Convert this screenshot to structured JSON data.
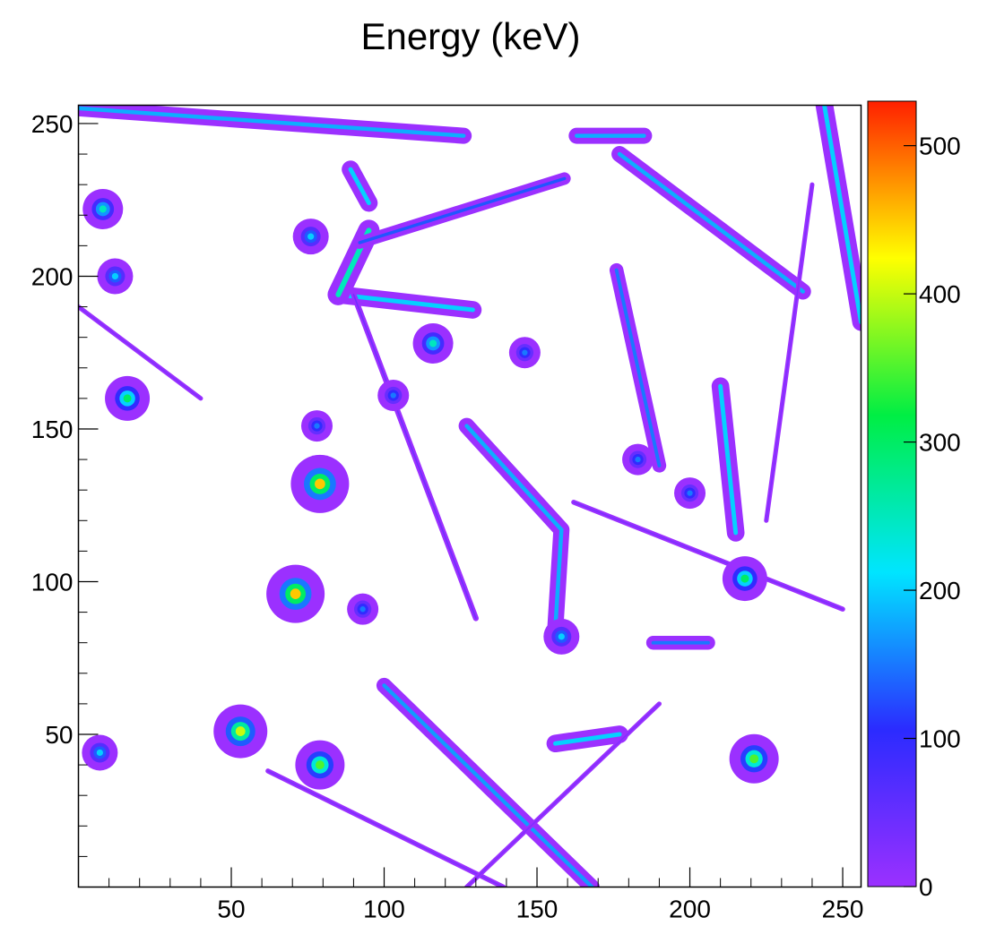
{
  "chart_data": {
    "type": "heatmap",
    "title": "Energy (keV)",
    "xlim": [
      0,
      256
    ],
    "ylim": [
      0,
      256
    ],
    "xticks": [
      50,
      100,
      150,
      200,
      250
    ],
    "yticks": [
      50,
      100,
      150,
      200,
      250
    ],
    "zlim": [
      0,
      530
    ],
    "zticks": [
      0,
      100,
      200,
      300,
      400,
      500
    ],
    "colormap": [
      "#9b30ff",
      "#2b2bff",
      "#00e5ff",
      "#00ee44",
      "#ffff00",
      "#ff2000"
    ],
    "x": [
      8,
      12,
      16,
      78,
      79,
      71,
      93,
      218,
      221,
      53,
      79,
      7,
      116,
      158,
      200,
      76,
      103,
      146,
      183
    ],
    "y": [
      222,
      200,
      160,
      151,
      132,
      96,
      91,
      101,
      42,
      51,
      40,
      44,
      178,
      82,
      129,
      213,
      161,
      175,
      140
    ],
    "values": [
      250,
      200,
      300,
      150,
      450,
      450,
      150,
      300,
      350,
      400,
      350,
      200,
      250,
      200,
      150,
      200,
      150,
      150,
      150
    ],
    "tracks": [
      {
        "x": [
          0,
          126
        ],
        "y": [
          255,
          246
        ],
        "value": 180
      },
      {
        "x": [
          89,
          95
        ],
        "y": [
          235,
          224
        ],
        "value": 200
      },
      {
        "x": [
          85,
          129
        ],
        "y": [
          194,
          189
        ],
        "value": 200
      },
      {
        "x": [
          85,
          95
        ],
        "y": [
          194,
          215
        ],
        "value": 250
      },
      {
        "x": [
          163,
          185
        ],
        "y": [
          246,
          246
        ],
        "value": 180
      },
      {
        "x": [
          177,
          237
        ],
        "y": [
          240,
          195
        ],
        "value": 180
      },
      {
        "x": [
          244,
          256
        ],
        "y": [
          256,
          185
        ],
        "value": 200
      },
      {
        "x": [
          127,
          158,
          156
        ],
        "y": [
          151,
          117,
          85
        ],
        "value": 180
      },
      {
        "x": [
          210,
          215
        ],
        "y": [
          164,
          116
        ],
        "value": 200
      },
      {
        "x": [
          176,
          190
        ],
        "y": [
          202,
          138
        ],
        "value": 150
      },
      {
        "x": [
          100,
          168
        ],
        "y": [
          66,
          0
        ],
        "value": 170
      },
      {
        "x": [
          156,
          177
        ],
        "y": [
          47,
          50
        ],
        "value": 200
      },
      {
        "x": [
          188,
          206
        ],
        "y": [
          80,
          80
        ],
        "value": 150
      },
      {
        "x": [
          92,
          159
        ],
        "y": [
          211,
          232
        ],
        "value": 130
      },
      {
        "x": [
          90,
          130
        ],
        "y": [
          194,
          88
        ],
        "value": 40
      },
      {
        "x": [
          62,
          139
        ],
        "y": [
          38,
          0
        ],
        "value": 30
      },
      {
        "x": [
          162,
          250
        ],
        "y": [
          126,
          91
        ],
        "value": 30
      },
      {
        "x": [
          127,
          190
        ],
        "y": [
          0,
          60
        ],
        "value": 25
      },
      {
        "x": [
          0,
          40
        ],
        "y": [
          190,
          160
        ],
        "value": 25
      },
      {
        "x": [
          240,
          225
        ],
        "y": [
          230,
          120
        ],
        "value": 25
      }
    ]
  }
}
